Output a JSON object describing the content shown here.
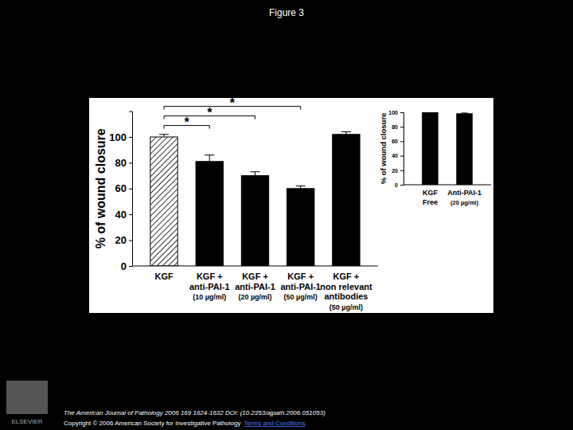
{
  "title": "Figure 3",
  "chart_data": [
    {
      "type": "bar",
      "y_label": "% of wound closure",
      "categories": [
        "KGF",
        "KGF +\nanti-PAI-1\n(10 µg/ml)",
        "KGF +\nanti-PAI-1\n(20 µg/ml)",
        "KGF +\nanti-PAI-1\n(50 µg/ml)",
        "KGF +\nnon relevant\nantibodies\n(50 µg/ml)"
      ],
      "values": [
        100,
        81,
        70,
        60,
        102
      ],
      "errors": [
        2,
        5,
        3,
        2,
        2
      ],
      "colors": [
        "#ffffff",
        "#000000",
        "#000000",
        "#000000",
        "#000000"
      ],
      "ylim": [
        0,
        120
      ],
      "yticks": [
        0,
        20,
        40,
        60,
        80,
        100
      ],
      "grid": false,
      "annotations": [
        {
          "text": "*",
          "from": 0,
          "to": 1
        },
        {
          "text": "*",
          "from": 0,
          "to": 2
        },
        {
          "text": "*",
          "from": 0,
          "to": 3
        }
      ]
    },
    {
      "type": "bar",
      "y_label": "% of wound closure",
      "categories": [
        "KGF\nFree",
        "Anti-PAI-1\n(20 µg/ml)"
      ],
      "values": [
        100,
        98
      ],
      "errors": [
        2,
        1
      ],
      "colors": [
        "#000000",
        "#000000"
      ],
      "ylim": [
        0,
        100
      ],
      "yticks": [
        0,
        20,
        40,
        60,
        80,
        100
      ],
      "grid": false
    }
  ],
  "footer": {
    "citation": "The American Journal of Pathology 2006 169 1624-1632 DOI: (10.2353/ajpath.2006.051053)",
    "copyright": "Copyright © 2006 American Society for Investigative Pathology",
    "link": "Terms and Conditions",
    "publisher": "ELSEVIER"
  }
}
